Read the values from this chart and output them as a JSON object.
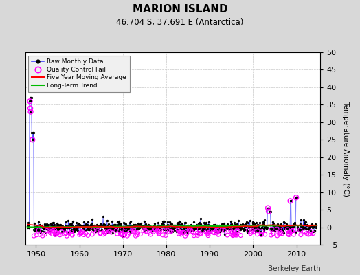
{
  "title": "MARION ISLAND",
  "subtitle": "46.704 S, 37.691 E (Antarctica)",
  "ylabel_right": "Temperature Anomaly (°C)",
  "xlabel_bottom": "Berkeley Earth",
  "ylim": [
    -5,
    50
  ],
  "xlim": [
    1947.5,
    2015.5
  ],
  "yticks": [
    -5,
    0,
    5,
    10,
    15,
    20,
    25,
    30,
    35,
    40,
    45,
    50
  ],
  "xticks": [
    1950,
    1960,
    1970,
    1980,
    1990,
    2000,
    2010
  ],
  "bg_color": "#d8d8d8",
  "plot_bg_color": "#ffffff",
  "raw_color": "#4444ff",
  "qc_color": "#ff00ff",
  "moving_avg_color": "#ff0000",
  "trend_color": "#00bb00",
  "seed": 42
}
